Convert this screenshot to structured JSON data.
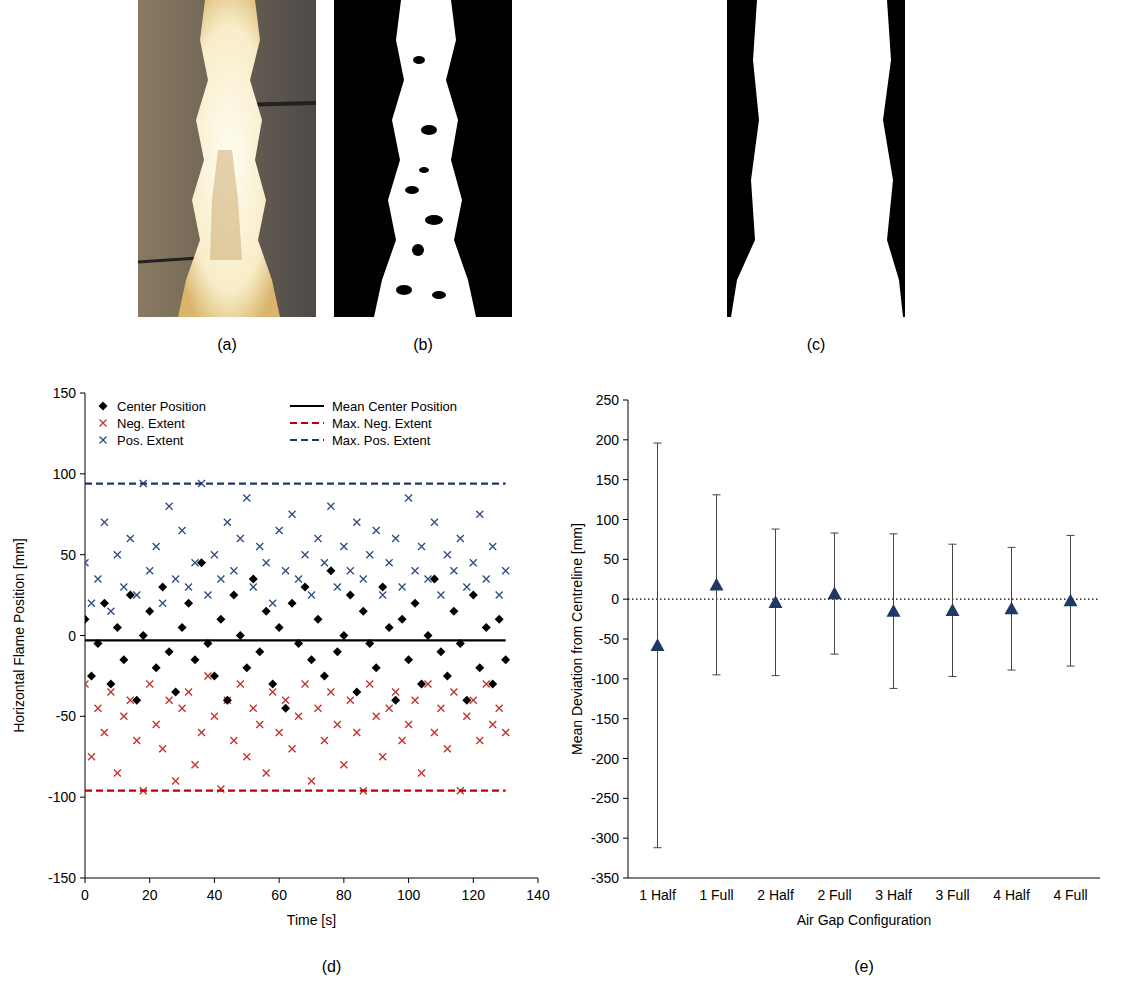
{
  "images": [
    {
      "caption": "(a)"
    },
    {
      "caption": "(b)"
    },
    {
      "caption": "(c)"
    }
  ],
  "chart_data": [
    {
      "type": "scatter",
      "caption": "(d)",
      "x_label": "Time [s]",
      "y_label": "Horizontal Flame Position [mm]",
      "xlim": [
        0,
        140
      ],
      "xticks": [
        0,
        20,
        40,
        60,
        80,
        100,
        120,
        140
      ],
      "ylim": [
        -150,
        150
      ],
      "yticks": [
        -150,
        -100,
        -50,
        0,
        50,
        100,
        150
      ],
      "grid": false,
      "legend": "top",
      "x": [
        0,
        2,
        4,
        6,
        8,
        10,
        12,
        14,
        16,
        18,
        20,
        22,
        24,
        26,
        28,
        30,
        32,
        34,
        36,
        38,
        40,
        42,
        44,
        46,
        48,
        50,
        52,
        54,
        56,
        58,
        60,
        62,
        64,
        66,
        68,
        70,
        72,
        74,
        76,
        78,
        80,
        82,
        84,
        86,
        88,
        90,
        92,
        94,
        96,
        98,
        100,
        102,
        104,
        106,
        108,
        110,
        112,
        114,
        116,
        118,
        120,
        122,
        124,
        126,
        128,
        130
      ],
      "series": [
        {
          "name": "Center Position",
          "type": "scatter",
          "marker": "diamond",
          "color": "#000000",
          "values": [
            10,
            -25,
            -5,
            20,
            -30,
            5,
            -15,
            25,
            -40,
            0,
            15,
            -20,
            30,
            -10,
            -35,
            5,
            20,
            -15,
            45,
            -5,
            -25,
            10,
            -40,
            25,
            0,
            -20,
            35,
            -10,
            15,
            -30,
            5,
            -45,
            20,
            -5,
            30,
            -15,
            10,
            -25,
            40,
            -10,
            0,
            25,
            -35,
            15,
            -5,
            -20,
            30,
            5,
            -40,
            10,
            -15,
            20,
            -30,
            0,
            35,
            -10,
            -25,
            15,
            -5,
            -40,
            25,
            -20,
            5,
            -30,
            10,
            -15
          ]
        },
        {
          "name": "Neg. Extent",
          "type": "scatter",
          "marker": "x",
          "color": "#c0302a",
          "values": [
            -30,
            -75,
            -45,
            -60,
            -35,
            -85,
            -50,
            -40,
            -65,
            -96,
            -30,
            -55,
            -70,
            -40,
            -90,
            -45,
            -35,
            -80,
            -60,
            -25,
            -50,
            -95,
            -40,
            -65,
            -30,
            -75,
            -45,
            -55,
            -85,
            -35,
            -60,
            -40,
            -70,
            -50,
            -30,
            -90,
            -45,
            -65,
            -35,
            -55,
            -80,
            -40,
            -60,
            -96,
            -30,
            -50,
            -75,
            -45,
            -35,
            -65,
            -55,
            -40,
            -85,
            -30,
            -60,
            -45,
            -70,
            -35,
            -96,
            -50,
            -40,
            -65,
            -30,
            -55,
            -45,
            -60
          ]
        },
        {
          "name": "Pos. Extent",
          "type": "scatter",
          "marker": "x",
          "color": "#2e4a86",
          "values": [
            45,
            20,
            35,
            70,
            15,
            50,
            30,
            60,
            25,
            94,
            40,
            55,
            20,
            80,
            35,
            65,
            30,
            45,
            94,
            25,
            50,
            35,
            70,
            40,
            60,
            85,
            30,
            55,
            45,
            20,
            65,
            40,
            75,
            35,
            50,
            25,
            60,
            45,
            80,
            30,
            55,
            40,
            70,
            35,
            50,
            65,
            25,
            45,
            60,
            30,
            85,
            40,
            55,
            35,
            70,
            25,
            50,
            40,
            60,
            30,
            45,
            75,
            35,
            55,
            25,
            40
          ]
        },
        {
          "name": "Mean Center Position",
          "type": "line",
          "line_style": "solid",
          "color": "#000000",
          "x": [
            0,
            130
          ],
          "values": [
            -3,
            -3
          ]
        },
        {
          "name": "Max. Neg. Extent",
          "type": "line",
          "line_style": "dashed",
          "color": "#c00000",
          "x": [
            0,
            130
          ],
          "values": [
            -96,
            -96
          ]
        },
        {
          "name": "Max. Pos. Extent",
          "type": "line",
          "line_style": "dashed",
          "color": "#1f3864",
          "x": [
            0,
            130
          ],
          "values": [
            94,
            94
          ]
        }
      ]
    },
    {
      "type": "scatter",
      "caption": "(e)",
      "x_label": "Air Gap Configuration",
      "y_label": "Mean Deviation from Centreline [mm]",
      "categories": [
        "1 Half",
        "1 Full",
        "2 Half",
        "2 Full",
        "3 Half",
        "3 Full",
        "4 Half",
        "4 Full"
      ],
      "values": [
        -58,
        18,
        -4,
        7,
        -15,
        -14,
        -12,
        -2
      ],
      "errors": [
        254,
        113,
        92,
        76,
        97,
        83,
        77,
        82
      ],
      "reference_line": 0,
      "marker": "triangle",
      "color": "#1f3864",
      "grid": false,
      "ylim": [
        -350,
        250
      ],
      "yticks": [
        -350,
        -300,
        -250,
        -200,
        -150,
        -100,
        -50,
        0,
        50,
        100,
        150,
        200,
        250
      ]
    }
  ]
}
